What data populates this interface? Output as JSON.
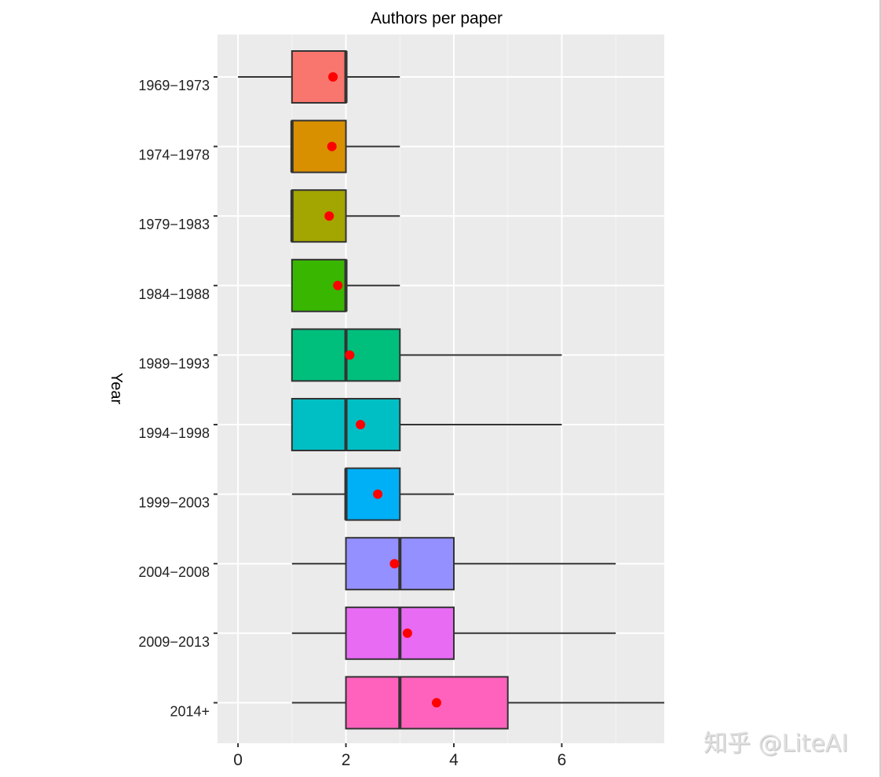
{
  "chart_data": {
    "type": "boxplot",
    "orientation": "horizontal",
    "title": "Authors per paper",
    "xlabel": "",
    "ylabel": "Year",
    "xlim": [
      -0.38,
      7.9
    ],
    "xticks": [
      0,
      2,
      4,
      6
    ],
    "grid": true,
    "legend": "none",
    "mean_marker_color": "#FF0000",
    "categories": [
      "1969-1973",
      "1974-1978",
      "1979-1983",
      "1984-1988",
      "1989-1993",
      "1994-1998",
      "1999-2003",
      "2004-2008",
      "2009-2013",
      "2014+"
    ],
    "series": [
      {
        "name": "1969-1973",
        "color": "#F8766D",
        "whisker_low": 0,
        "q1": 1,
        "median": 2,
        "q3": 2,
        "whisker_high": 3,
        "mean": 1.76
      },
      {
        "name": "1974-1978",
        "color": "#D89000",
        "whisker_low": 1,
        "q1": 1,
        "median": 1,
        "q3": 2,
        "whisker_high": 3,
        "mean": 1.74
      },
      {
        "name": "1979-1983",
        "color": "#A3A500",
        "whisker_low": 1,
        "q1": 1,
        "median": 1,
        "q3": 2,
        "whisker_high": 3,
        "mean": 1.69
      },
      {
        "name": "1984-1988",
        "color": "#39B600",
        "whisker_low": 1,
        "q1": 1,
        "median": 2,
        "q3": 2,
        "whisker_high": 3,
        "mean": 1.85
      },
      {
        "name": "1989-1993",
        "color": "#00BF7D",
        "whisker_low": 1,
        "q1": 1,
        "median": 2,
        "q3": 3,
        "whisker_high": 6,
        "mean": 2.07
      },
      {
        "name": "1994-1998",
        "color": "#00BFC4",
        "whisker_low": 1,
        "q1": 1,
        "median": 2,
        "q3": 3,
        "whisker_high": 6,
        "mean": 2.27
      },
      {
        "name": "1999-2003",
        "color": "#00B0F6",
        "whisker_low": 1,
        "q1": 2,
        "median": 2,
        "q3": 3,
        "whisker_high": 4,
        "mean": 2.59
      },
      {
        "name": "2004-2008",
        "color": "#9590FF",
        "whisker_low": 1,
        "q1": 2,
        "median": 3,
        "q3": 4,
        "whisker_high": 7,
        "mean": 2.9
      },
      {
        "name": "2009-2013",
        "color": "#E76BF3",
        "whisker_low": 1,
        "q1": 2,
        "median": 3,
        "q3": 4,
        "whisker_high": 7,
        "mean": 3.14
      },
      {
        "name": "2014+",
        "color": "#FF62BC",
        "whisker_low": 1,
        "q1": 2,
        "median": 3,
        "q3": 5,
        "whisker_high": 9,
        "mean": 3.68
      }
    ]
  },
  "watermark": "知乎 @LiteAI"
}
